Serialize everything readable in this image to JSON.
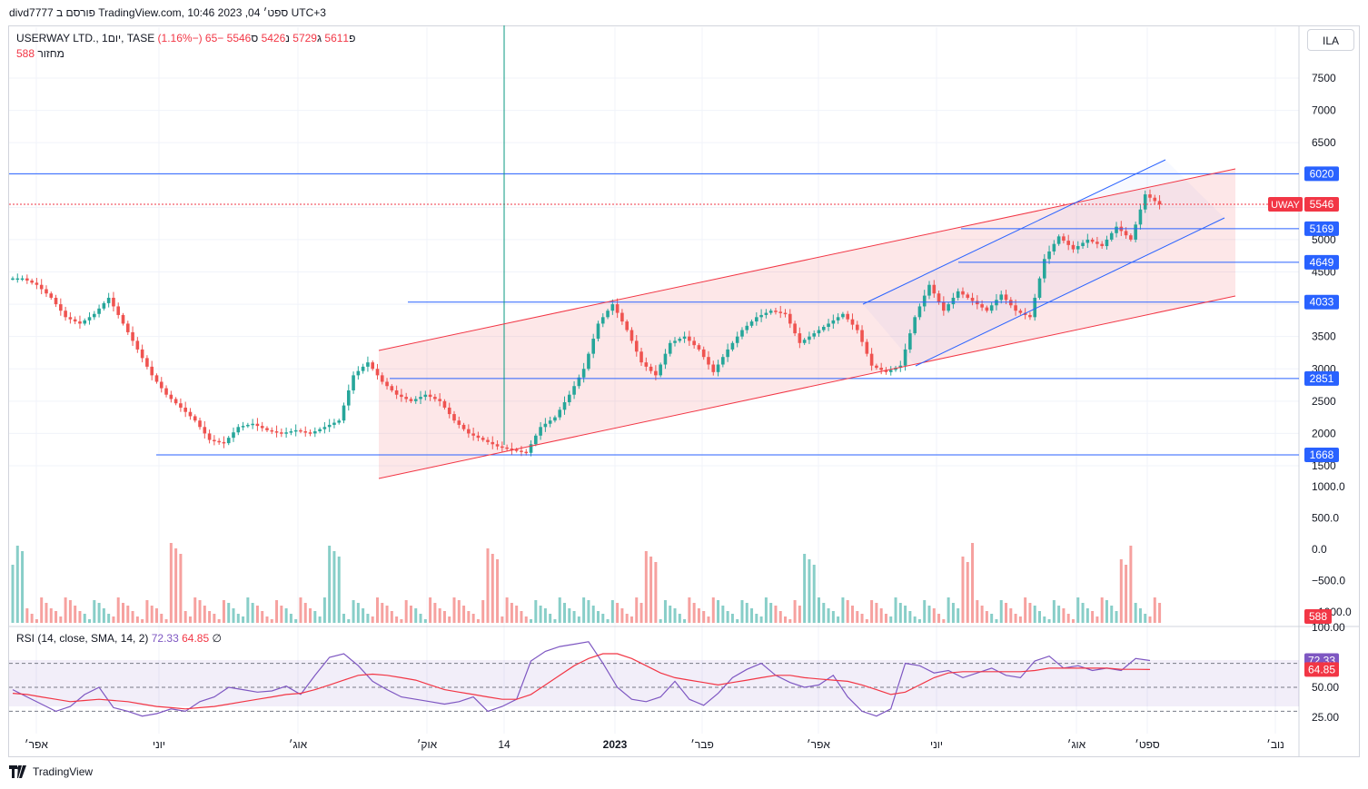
{
  "header": {
    "title": "divd7777 פורסם ב TradingView.com, 10:46 2023 ,04 ספט׳ UTC+3"
  },
  "symbol": {
    "name": "USERWAY LTD., 1יום, TASE",
    "open_label": "פ",
    "open": "5611",
    "high_label": "ג",
    "high": "5729",
    "low_label": "נ",
    "low": "5426",
    "close_label": "ס",
    "close": "5546",
    "change": "−65 (−1.16%)"
  },
  "volume_legend": {
    "label": "מחזור",
    "value": "588"
  },
  "rsi_legend": {
    "label": "RSI (14, close, SMA, 14, 2)",
    "rsi": "72.33",
    "sma": "64.85",
    "extra": "∅"
  },
  "scale_button": "ILA",
  "footer": {
    "logo_text": "TradingView"
  },
  "colors": {
    "up": "#26a69a",
    "down": "#ef5350",
    "hline": "#2962ff",
    "channel": "#f23645",
    "rsi": "#7e57c2"
  },
  "chart_data": [
    {
      "type": "candlestick",
      "title": "USERWAY LTD., 1יום, TASE",
      "ylim": [
        1200,
        7900
      ],
      "yticks": [
        "7500",
        "7000",
        "6500",
        "6000",
        "5500",
        "5000",
        "4500",
        "4000",
        "3500",
        "3000",
        "2500",
        "2000",
        "1500"
      ],
      "xticks": [
        "אפר׳",
        "יוני",
        "אוג׳",
        "אוק׳",
        "14",
        "2023",
        "פבר׳",
        "אפר׳",
        "יוני",
        "אוג׳",
        "ספט׳",
        "נוב׳"
      ],
      "close_path_values": [
        4400,
        4300,
        4100,
        3800,
        3700,
        3850,
        4100,
        3700,
        3300,
        2900,
        2600,
        2400,
        2200,
        1900,
        1850,
        2100,
        2150,
        2050,
        2000,
        2050,
        2000,
        2100,
        2200,
        2900,
        3100,
        2800,
        2600,
        2500,
        2600,
        2500,
        2200,
        2000,
        1900,
        1800,
        1750,
        1700,
        2100,
        2250,
        2600,
        3000,
        3700,
        4000,
        3600,
        3100,
        2900,
        3400,
        3500,
        3300,
        2950,
        3300,
        3600,
        3800,
        3900,
        3850,
        3400,
        3550,
        3700,
        3850,
        3600,
        3050,
        2950,
        3050,
        3800,
        4300,
        3900,
        4200,
        4050,
        3900,
        4150,
        3900,
        3800,
        4700,
        5050,
        4850,
        5000,
        4900,
        5200,
        5000,
        5700,
        5546
      ],
      "horizontal_levels": [
        6020,
        5546,
        5169,
        4649,
        4033,
        2851,
        1668
      ],
      "last_price_label": "UWAY",
      "last_price": 5546
    },
    {
      "type": "bar",
      "title": "מחזור",
      "yticks": [
        "1000.0",
        "500.0",
        "0.0",
        "−500.0",
        "−1000.0"
      ],
      "last_value": 588
    },
    {
      "type": "line",
      "title": "RSI (14, close, SMA, 14, 2)",
      "yticks": [
        "100.00",
        "75.00",
        "50.00",
        "25.00"
      ],
      "bands": [
        70,
        50,
        30
      ],
      "series": [
        {
          "name": "RSI",
          "values": [
            48,
            42,
            36,
            30,
            34,
            44,
            50,
            33,
            30,
            26,
            28,
            32,
            30,
            38,
            42,
            50,
            48,
            46,
            47,
            51,
            44,
            60,
            75,
            78,
            68,
            55,
            48,
            42,
            40,
            38,
            36,
            38,
            42,
            30,
            34,
            40,
            72,
            80,
            84,
            86,
            88,
            70,
            50,
            40,
            38,
            42,
            55,
            40,
            35,
            45,
            58,
            65,
            70,
            60,
            54,
            50,
            52,
            60,
            42,
            30,
            26,
            32,
            70,
            68,
            62,
            64,
            58,
            62,
            66,
            60,
            58,
            72,
            76,
            66,
            68,
            64,
            66,
            64,
            74,
            72.33
          ]
        },
        {
          "name": "SMA",
          "values": [
            45,
            44,
            42,
            40,
            38,
            39,
            40,
            39,
            38,
            36,
            34,
            33,
            32,
            33,
            34,
            36,
            38,
            40,
            42,
            44,
            45,
            48,
            52,
            56,
            60,
            61,
            60,
            58,
            56,
            52,
            48,
            46,
            44,
            42,
            40,
            40,
            44,
            52,
            60,
            68,
            74,
            78,
            78,
            74,
            68,
            62,
            58,
            56,
            54,
            52,
            54,
            56,
            58,
            60,
            60,
            58,
            57,
            56,
            55,
            52,
            48,
            44,
            46,
            52,
            58,
            62,
            63,
            63,
            63,
            63,
            63,
            64,
            66,
            66,
            66,
            66,
            66,
            65,
            65,
            64.85
          ]
        }
      ],
      "last_values": {
        "rsi": 72.33,
        "sma": 64.85
      }
    }
  ]
}
